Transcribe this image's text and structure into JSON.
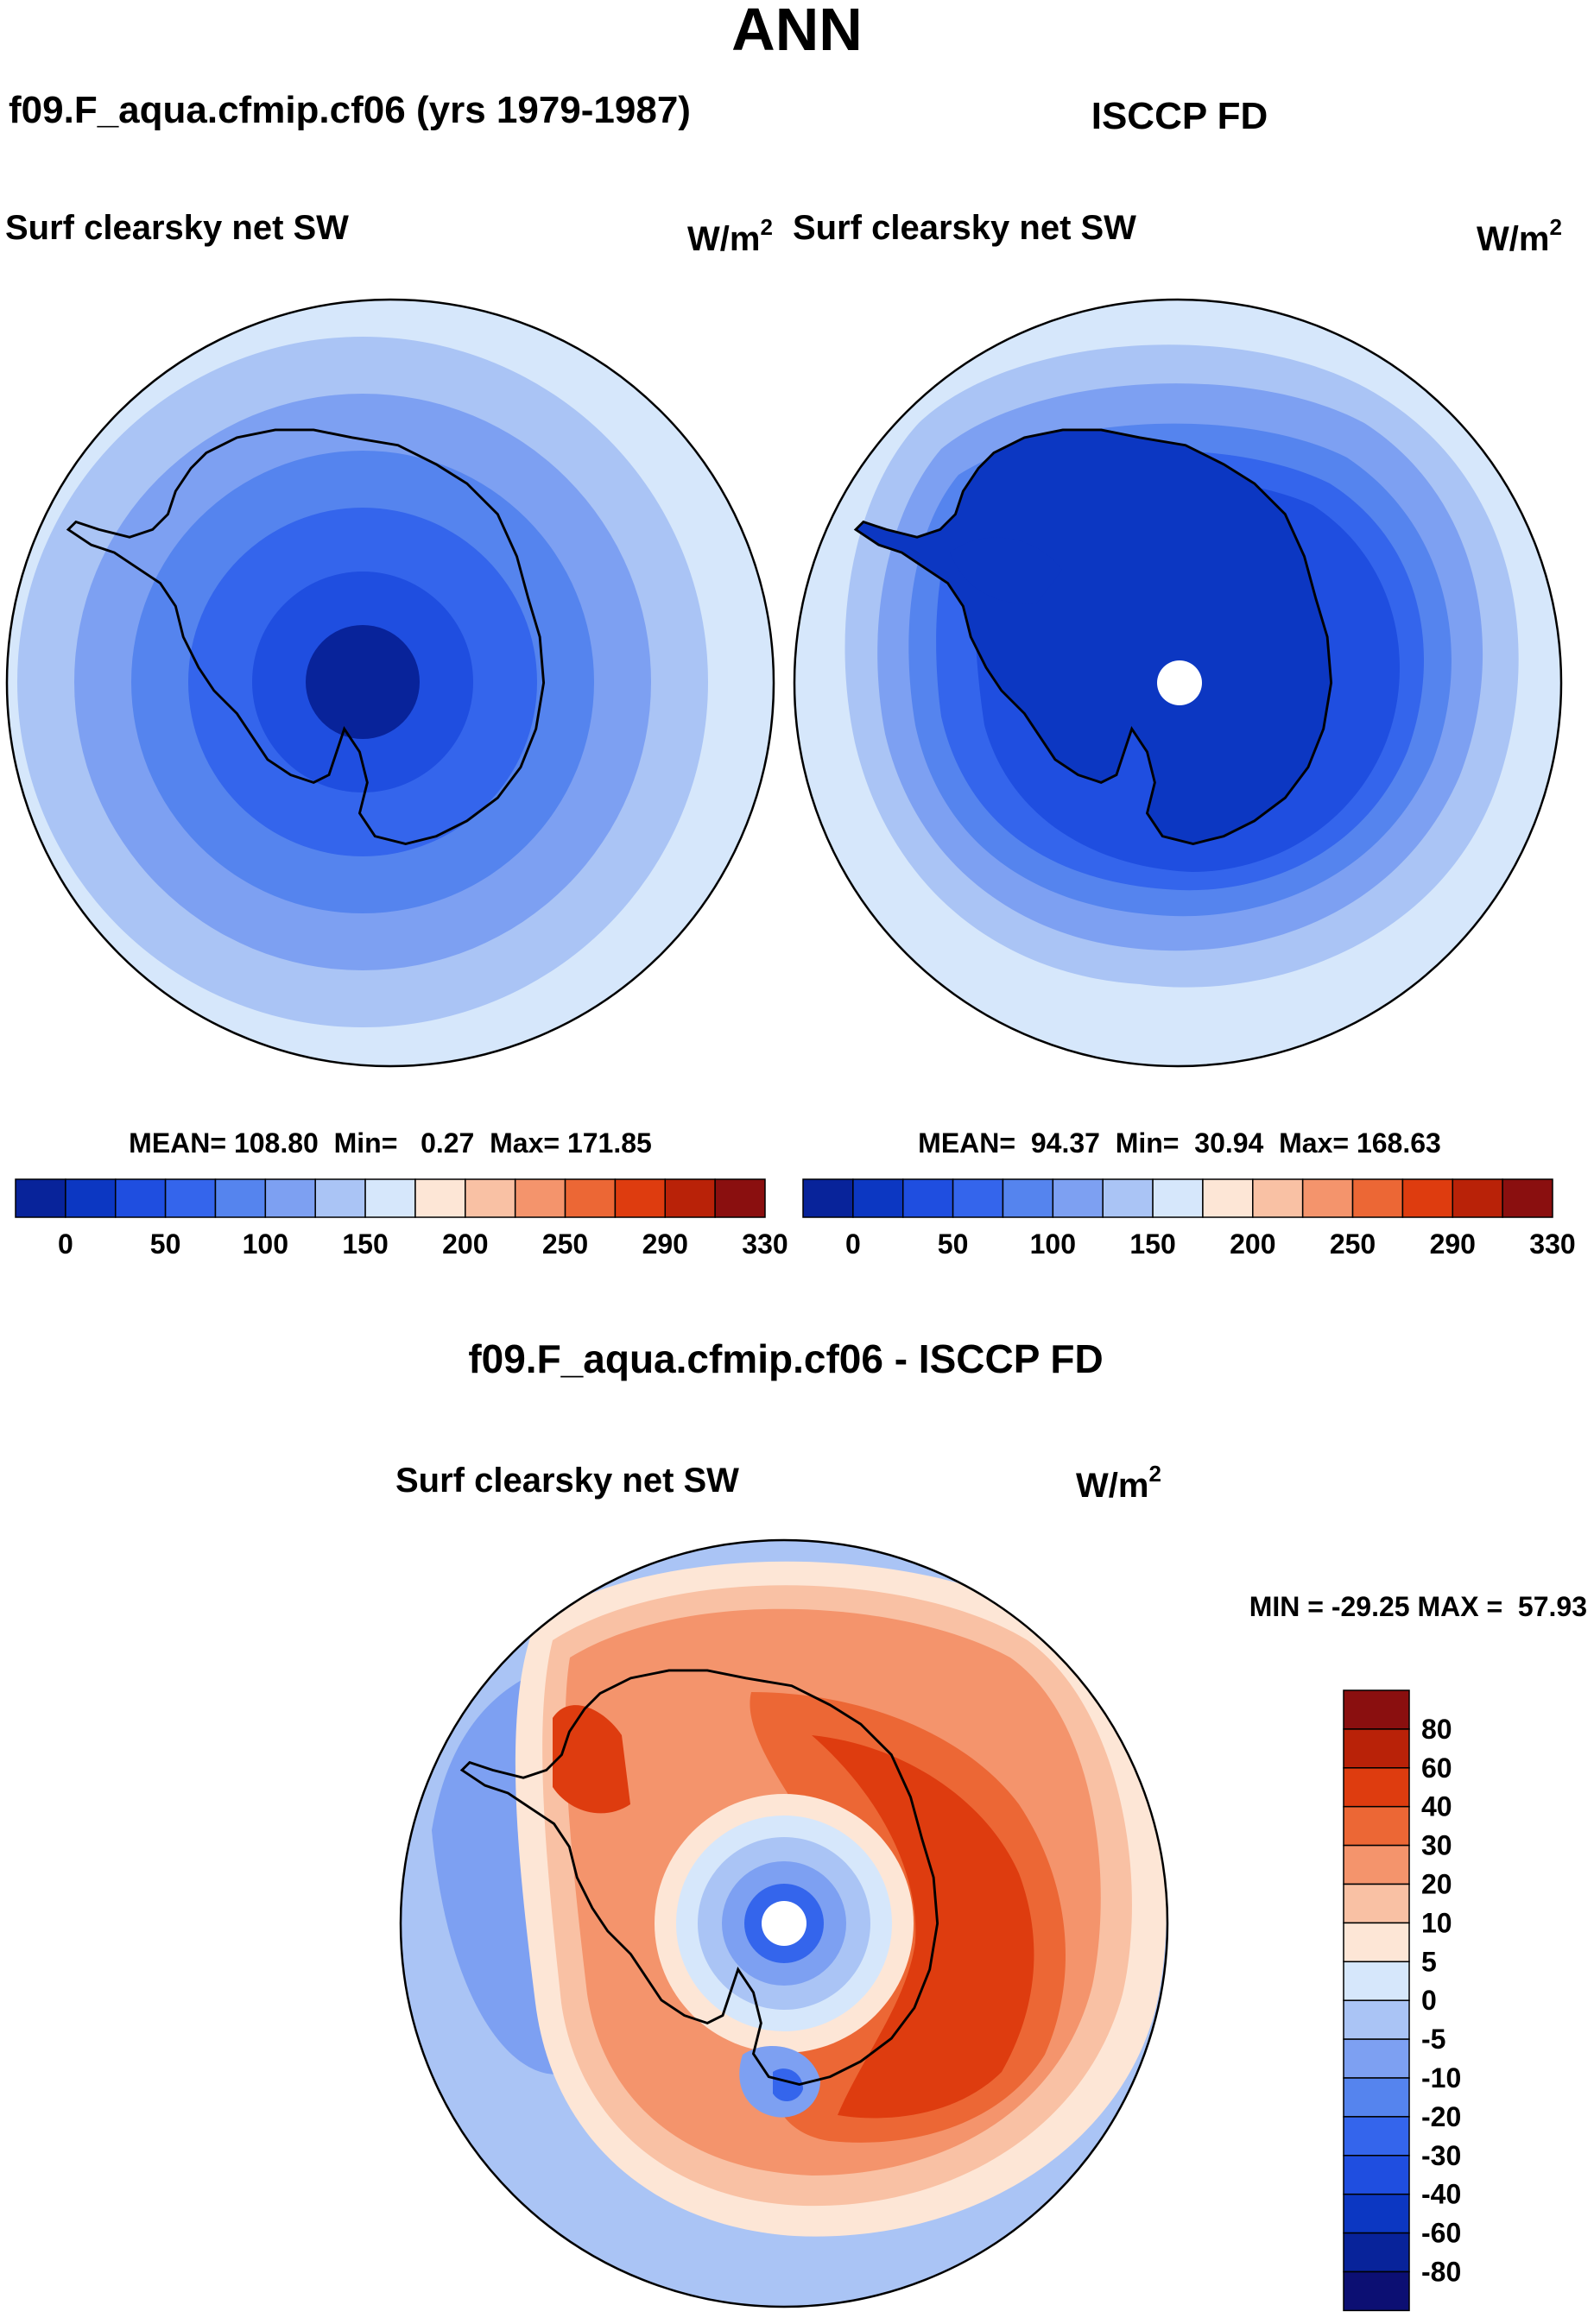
{
  "figure": {
    "title": "ANN",
    "diff_title": "f09.F_aqua.cfmip.cf06 - ISCCP FD",
    "diff_minmax": "MIN = -29.25 MAX =  57.93"
  },
  "colors": {
    "model_scale": [
      "#08239a",
      "#0c37c2",
      "#1f4ee0",
      "#3465ec",
      "#5584ee",
      "#7da0f2",
      "#aac4f5",
      "#d6e7fb",
      "#fde6d6",
      "#f9c1a4",
      "#f4946c",
      "#ec6735",
      "#de3c0f",
      "#b92208",
      "#8a0f0f"
    ],
    "diff_scale": [
      "#0c0f73",
      "#08239a",
      "#0c37c2",
      "#1f4ee0",
      "#3465ec",
      "#5584ee",
      "#7da0f2",
      "#aac4f5",
      "#d6e7fb",
      "#fde6d6",
      "#f9c1a4",
      "#f4946c",
      "#ec6735",
      "#de3c0f",
      "#b92208",
      "#8a0f0f"
    ]
  },
  "chart_data": [
    {
      "type": "heatmap",
      "id": "model",
      "case_title": "f09.F_aqua.cfmip.cf06 (yrs 1979-1987)",
      "field": "Surf clearsky net SW",
      "units": "W/m",
      "units_sup": "2",
      "projection": "south polar stereographic",
      "stats": "MEAN= 108.80  Min=   0.27  Max= 171.85",
      "mean": 108.8,
      "min": 0.27,
      "max": 171.85,
      "colorbar_levels": [
        "0",
        "50",
        "100",
        "150",
        "200",
        "250",
        "290",
        "330"
      ],
      "colorbar_values": [
        0,
        50,
        100,
        150,
        200,
        250,
        290,
        330
      ]
    },
    {
      "type": "heatmap",
      "id": "obs",
      "case_title": "ISCCP FD",
      "field": "Surf clearsky net SW",
      "units": "W/m",
      "units_sup": "2",
      "projection": "south polar stereographic",
      "stats": "MEAN=  94.37  Min=  30.94  Max= 168.63",
      "mean": 94.37,
      "min": 30.94,
      "max": 168.63,
      "colorbar_levels": [
        "0",
        "50",
        "100",
        "150",
        "200",
        "250",
        "290",
        "330"
      ],
      "colorbar_values": [
        0,
        50,
        100,
        150,
        200,
        250,
        290,
        330
      ]
    },
    {
      "type": "heatmap",
      "id": "diff",
      "case_title": "f09.F_aqua.cfmip.cf06 - ISCCP FD",
      "field": "Surf clearsky net SW",
      "units": "W/m",
      "units_sup": "2",
      "projection": "south polar stereographic",
      "min": -29.25,
      "max": 57.93,
      "colorbar_levels": [
        "80",
        "60",
        "40",
        "30",
        "20",
        "10",
        "5",
        "0",
        "-5",
        "-10",
        "-20",
        "-30",
        "-40",
        "-60",
        "-80"
      ],
      "colorbar_values": [
        80,
        60,
        40,
        30,
        20,
        10,
        5,
        0,
        -5,
        -10,
        -20,
        -30,
        -40,
        -60,
        -80
      ]
    }
  ]
}
